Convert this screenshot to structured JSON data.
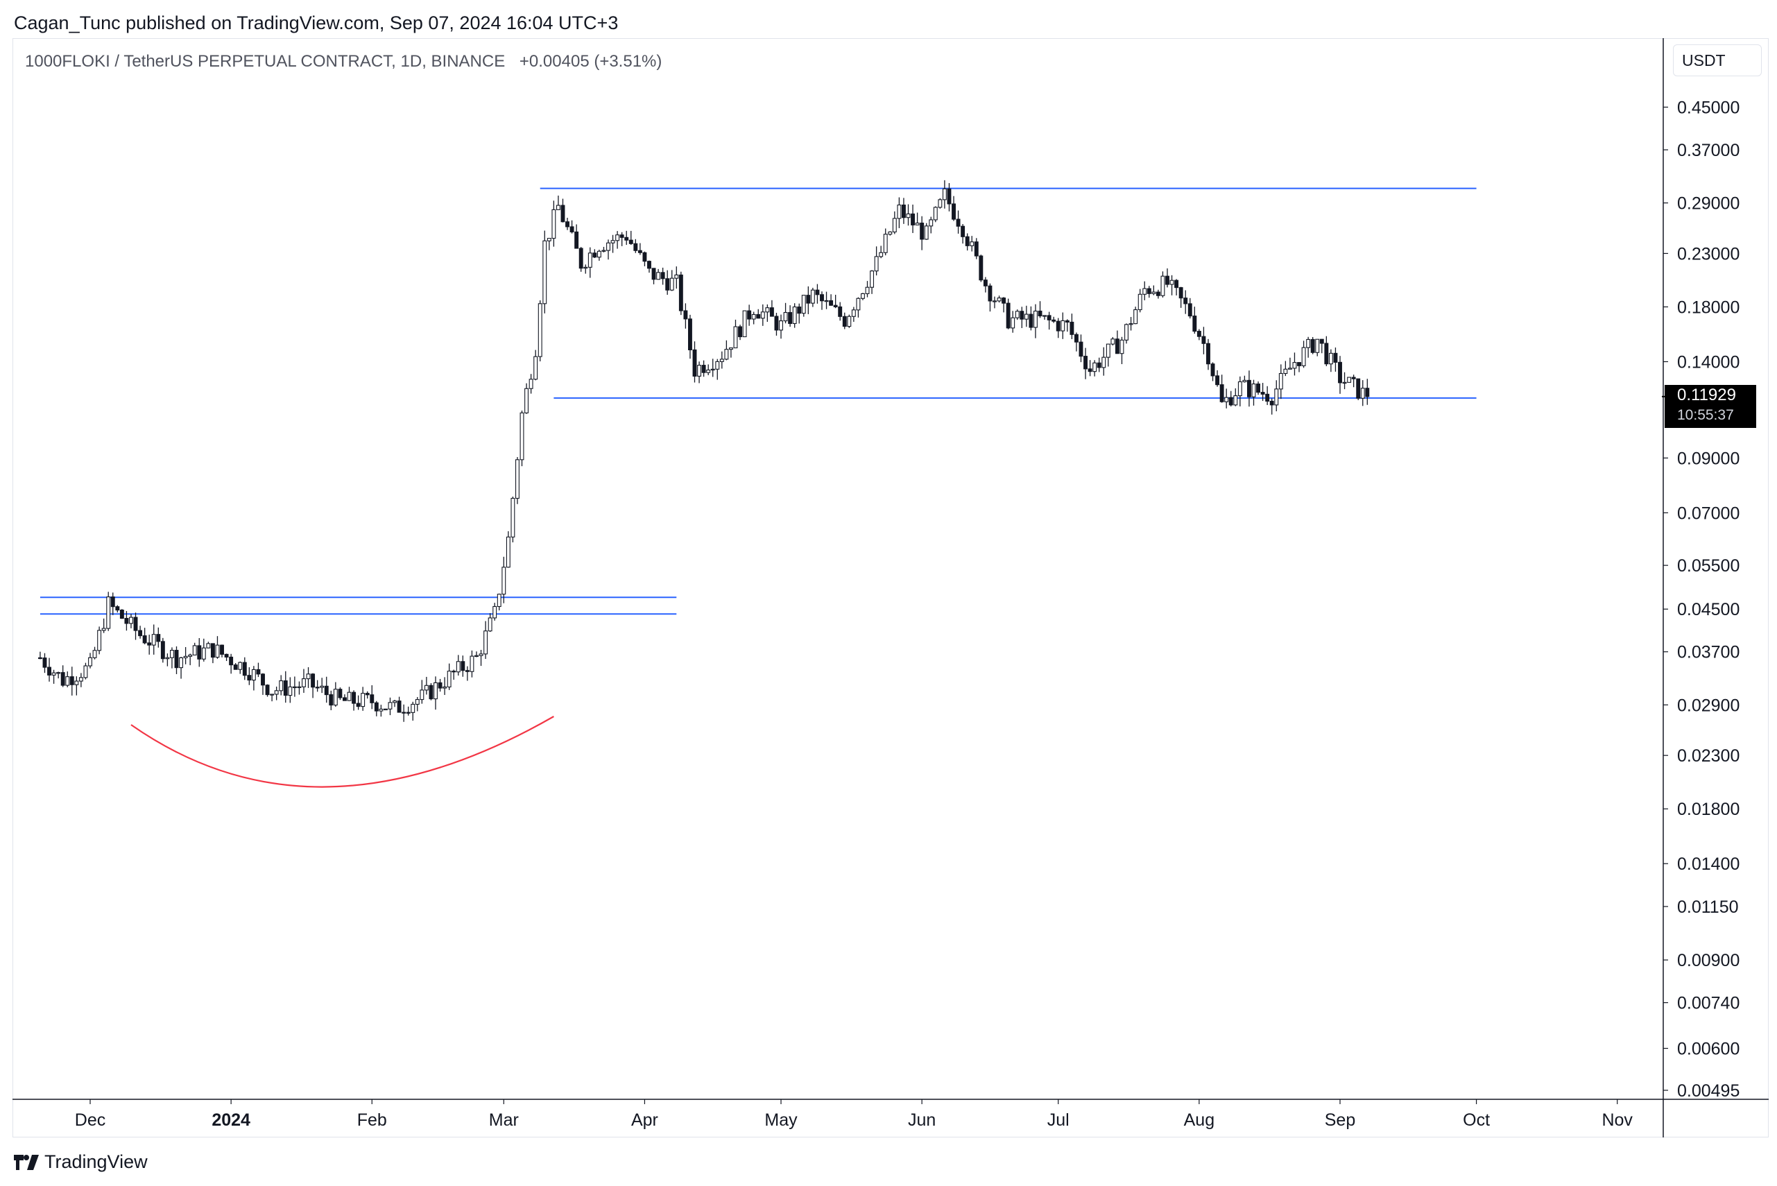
{
  "publisher_line": "Cagan_Tunc published on TradingView.com, Sep 07, 2024 16:04 UTC+3",
  "symbol": {
    "title": "1000FLOKI / TetherUS PERPETUAL CONTRACT, 1D, BINANCE",
    "change": "+0.00405 (+3.51%)"
  },
  "currency_button": "USDT",
  "last_price": {
    "price": "0.11929",
    "countdown": "10:55:37"
  },
  "brand": "TradingView",
  "colors": {
    "candle": "#131722",
    "level_lines": "#2962ff",
    "arc": "#f23645",
    "grid_border": "#e0e3eb"
  },
  "chart_data": {
    "type": "candlestick",
    "scale": "log",
    "y_ticks": [
      "0.45000",
      "0.37000",
      "0.29000",
      "0.23000",
      "0.18000",
      "0.14000",
      "0.11929",
      "0.09000",
      "0.07000",
      "0.05500",
      "0.04500",
      "0.03700",
      "0.02900",
      "0.02300",
      "0.01800",
      "0.01400",
      "0.01150",
      "0.00900",
      "0.00740",
      "0.00600",
      "0.00495"
    ],
    "x_ticks": [
      {
        "label": "Dec",
        "date": "2023-12-01",
        "bold": false
      },
      {
        "label": "2024",
        "date": "2024-01-01",
        "bold": true
      },
      {
        "label": "Feb",
        "date": "2024-02-01",
        "bold": false
      },
      {
        "label": "Mar",
        "date": "2024-03-01",
        "bold": false
      },
      {
        "label": "Apr",
        "date": "2024-04-01",
        "bold": false
      },
      {
        "label": "May",
        "date": "2024-05-01",
        "bold": false
      },
      {
        "label": "Jun",
        "date": "2024-06-01",
        "bold": false
      },
      {
        "label": "Jul",
        "date": "2024-07-01",
        "bold": false
      },
      {
        "label": "Aug",
        "date": "2024-08-01",
        "bold": false
      },
      {
        "label": "Sep",
        "date": "2024-09-01",
        "bold": false
      },
      {
        "label": "Oct",
        "date": "2024-10-01",
        "bold": false
      },
      {
        "label": "Nov",
        "date": "2024-11-01",
        "bold": false
      }
    ],
    "price_path": [
      [
        "2023-11-20",
        0.036
      ],
      [
        "2023-11-25",
        0.0325
      ],
      [
        "2023-12-01",
        0.0345
      ],
      [
        "2023-12-05",
        0.046
      ],
      [
        "2023-12-12",
        0.04
      ],
      [
        "2023-12-20",
        0.036
      ],
      [
        "2023-12-28",
        0.0375
      ],
      [
        "2024-01-05",
        0.034
      ],
      [
        "2024-01-10",
        0.031
      ],
      [
        "2024-01-18",
        0.032
      ],
      [
        "2024-01-25",
        0.0295
      ],
      [
        "2024-02-01",
        0.0295
      ],
      [
        "2024-02-06",
        0.0285
      ],
      [
        "2024-02-12",
        0.03
      ],
      [
        "2024-02-18",
        0.033
      ],
      [
        "2024-02-24",
        0.036
      ],
      [
        "2024-02-28",
        0.044
      ],
      [
        "2024-03-02",
        0.062
      ],
      [
        "2024-03-05",
        0.11
      ],
      [
        "2024-03-08",
        0.15
      ],
      [
        "2024-03-10",
        0.24
      ],
      [
        "2024-03-13",
        0.285
      ],
      [
        "2024-03-18",
        0.22
      ],
      [
        "2024-03-22",
        0.24
      ],
      [
        "2024-03-28",
        0.25
      ],
      [
        "2024-04-02",
        0.21
      ],
      [
        "2024-04-08",
        0.2
      ],
      [
        "2024-04-12",
        0.135
      ],
      [
        "2024-04-18",
        0.145
      ],
      [
        "2024-04-25",
        0.18
      ],
      [
        "2024-05-01",
        0.165
      ],
      [
        "2024-05-08",
        0.19
      ],
      [
        "2024-05-15",
        0.17
      ],
      [
        "2024-05-22",
        0.22
      ],
      [
        "2024-05-27",
        0.28
      ],
      [
        "2024-06-02",
        0.25
      ],
      [
        "2024-06-06",
        0.3
      ],
      [
        "2024-06-10",
        0.26
      ],
      [
        "2024-06-15",
        0.2
      ],
      [
        "2024-06-20",
        0.17
      ],
      [
        "2024-06-27",
        0.17
      ],
      [
        "2024-07-03",
        0.165
      ],
      [
        "2024-07-08",
        0.135
      ],
      [
        "2024-07-15",
        0.155
      ],
      [
        "2024-07-20",
        0.195
      ],
      [
        "2024-07-25",
        0.2
      ],
      [
        "2024-07-30",
        0.175
      ],
      [
        "2024-08-03",
        0.145
      ],
      [
        "2024-08-06",
        0.115
      ],
      [
        "2024-08-10",
        0.125
      ],
      [
        "2024-08-17",
        0.12
      ],
      [
        "2024-08-22",
        0.14
      ],
      [
        "2024-08-27",
        0.155
      ],
      [
        "2024-09-01",
        0.13
      ],
      [
        "2024-09-07",
        0.11929
      ]
    ],
    "annotations": {
      "resistance_top": {
        "price": 0.31,
        "from": "2024-03-09",
        "to": "2024-10-01"
      },
      "support_bottom": {
        "price": 0.1185,
        "from": "2024-03-12",
        "to": "2024-10-01"
      },
      "breakout_upper": {
        "price": 0.0475,
        "from": "2023-11-20",
        "to": "2024-04-08"
      },
      "breakout_lower": {
        "price": 0.044,
        "from": "2023-11-20",
        "to": "2024-04-08"
      },
      "rounded_bottom_arc": {
        "from": "2023-12-10",
        "to": "2024-03-12"
      }
    }
  }
}
